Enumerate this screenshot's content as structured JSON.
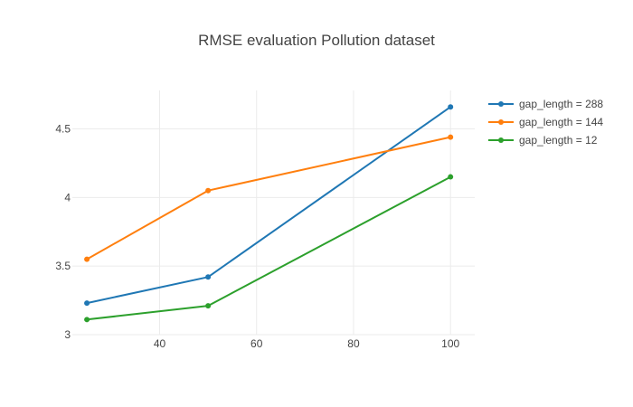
{
  "chart_data": {
    "type": "line",
    "title": "RMSE evaluation Pollution dataset",
    "xlabel": "",
    "ylabel": "",
    "x_ticks": [
      40,
      60,
      80,
      100
    ],
    "y_ticks": [
      3,
      3.5,
      4,
      4.5
    ],
    "y_tick_labels": [
      "3",
      "3.5",
      "4",
      "4.5"
    ],
    "xlim": [
      22,
      105
    ],
    "ylim": [
      3,
      4.78
    ],
    "grid": true,
    "legend_position": "top-right",
    "series": [
      {
        "name": "gap_length = 288",
        "color": "#1f77b4",
        "points": [
          {
            "x": 25,
            "y": 3.23
          },
          {
            "x": 50,
            "y": 3.42
          },
          {
            "x": 100,
            "y": 4.66
          }
        ]
      },
      {
        "name": "gap_length = 144",
        "color": "#ff7f0e",
        "points": [
          {
            "x": 25,
            "y": 3.55
          },
          {
            "x": 50,
            "y": 4.05
          },
          {
            "x": 100,
            "y": 4.44
          }
        ]
      },
      {
        "name": "gap_length = 12",
        "color": "#2ca02c",
        "points": [
          {
            "x": 25,
            "y": 3.11
          },
          {
            "x": 50,
            "y": 3.21
          },
          {
            "x": 100,
            "y": 4.15
          }
        ]
      }
    ]
  }
}
